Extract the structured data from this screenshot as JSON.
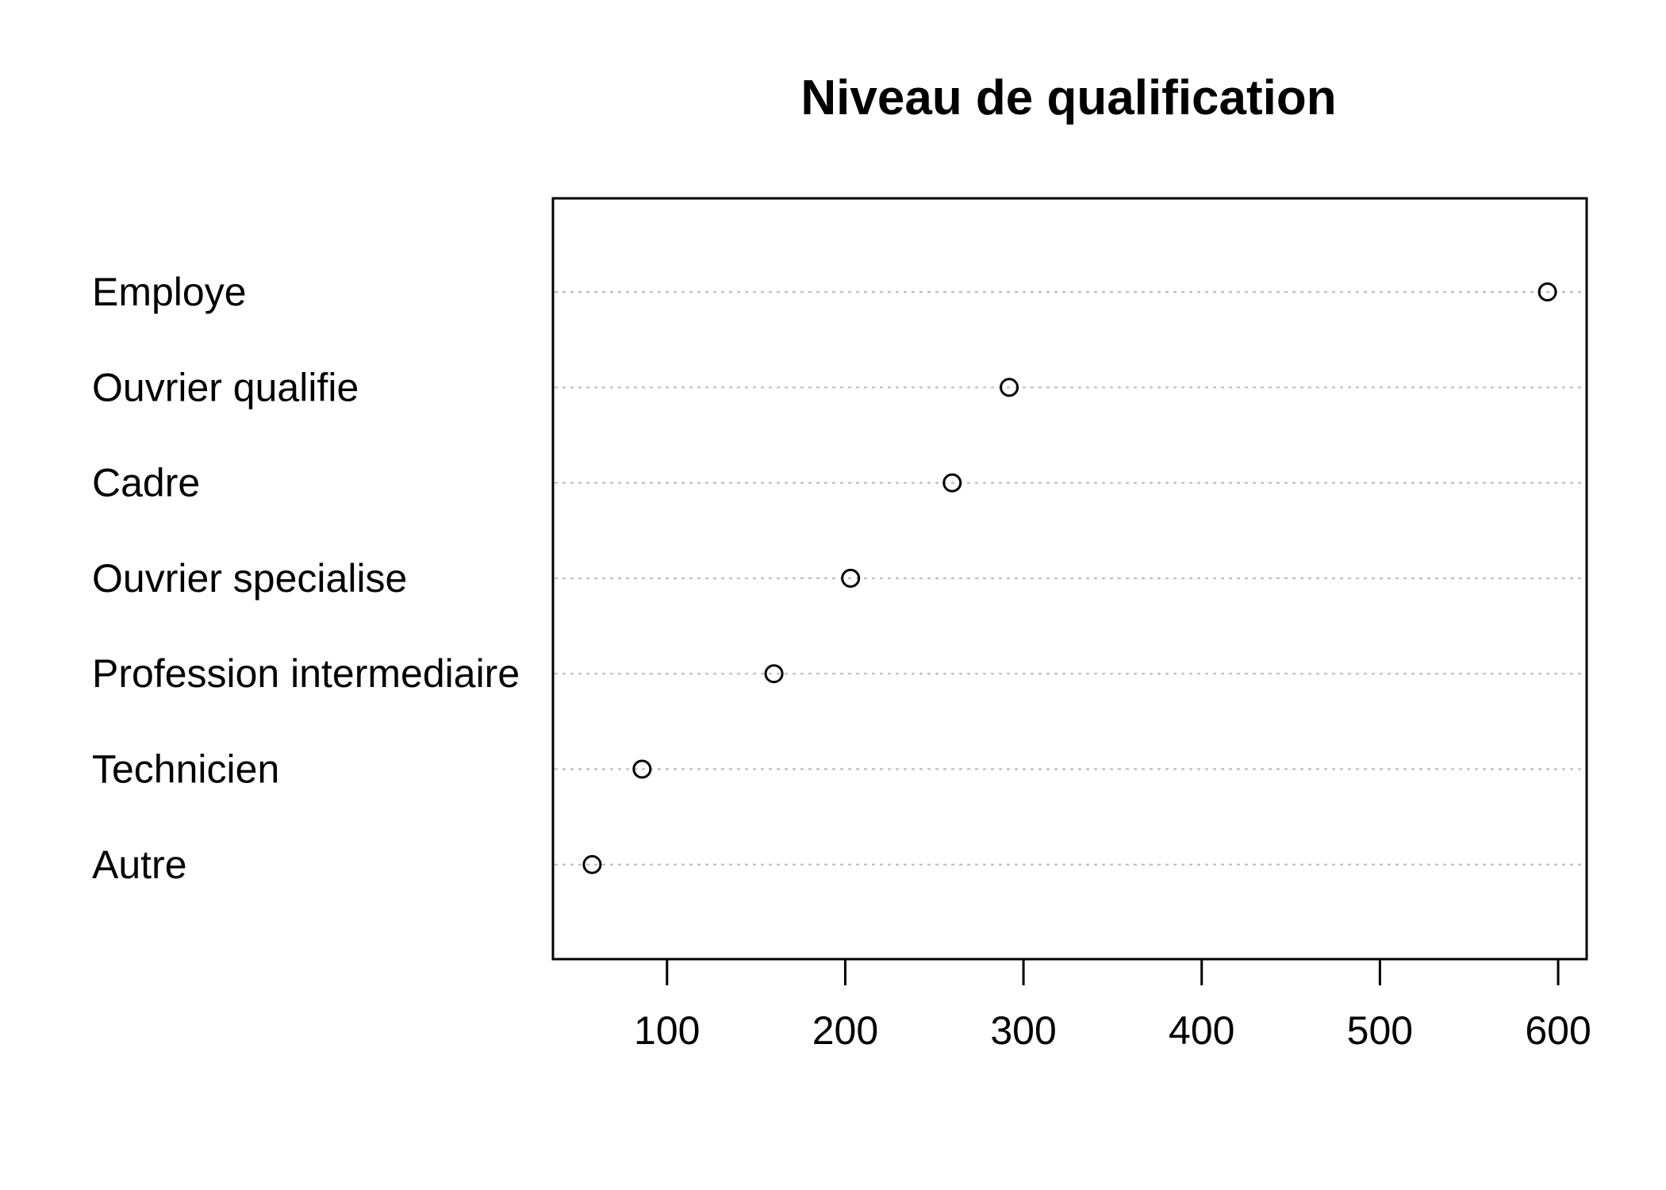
{
  "chart_data": {
    "type": "scatter",
    "title": "Niveau de qualification",
    "xlabel": "",
    "ylabel": "",
    "categories": [
      "Employe",
      "Ouvrier qualifie",
      "Cadre",
      "Ouvrier specialise",
      "Profession intermediaire",
      "Technicien",
      "Autre"
    ],
    "values": [
      594,
      292,
      260,
      203,
      160,
      86,
      58
    ],
    "xlim": [
      36,
      616
    ],
    "xticks": [
      100,
      200,
      300,
      400,
      500,
      600
    ],
    "grid": "dotted horizontal guide per category",
    "marker": "open-circle",
    "colors": {
      "marker": "#000000",
      "guide": "#bebebe",
      "axis": "#000000"
    }
  }
}
